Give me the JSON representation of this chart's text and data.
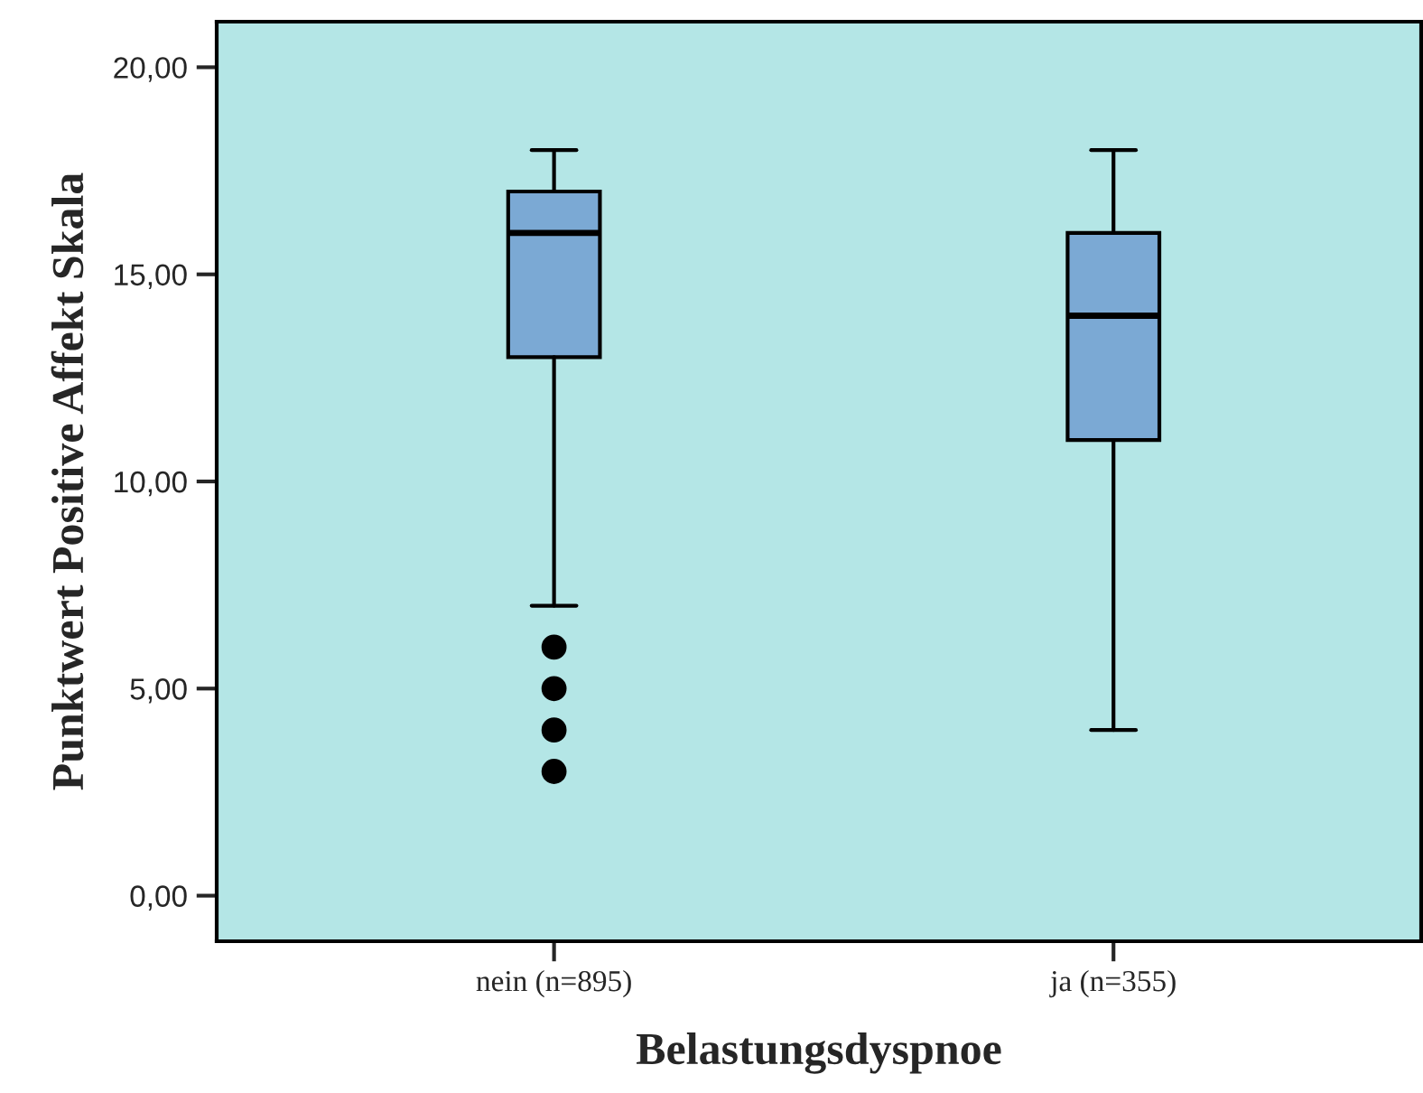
{
  "chart_data": {
    "type": "box",
    "xlabel": "Belastungsdyspnoe",
    "ylabel": "Punktwert Positive Affekt Skala",
    "categories": [
      "nein (n=895)",
      "ja (n=355)"
    ],
    "boxes": [
      {
        "low": 7,
        "q1": 13,
        "median": 16,
        "q3": 17,
        "high": 18,
        "outliers": [
          3,
          4,
          5,
          6
        ]
      },
      {
        "low": 4,
        "q1": 11,
        "median": 14,
        "q3": 16,
        "high": 18
      }
    ],
    "color": "#7ba9d4",
    "ylim": [
      -1.1,
      21.1
    ],
    "yticks": [
      {
        "value": 0,
        "label": "0,00"
      },
      {
        "value": 5,
        "label": "5,00"
      },
      {
        "value": 10,
        "label": "10,00"
      },
      {
        "value": 15,
        "label": "15,00"
      },
      {
        "value": 20,
        "label": "20,00"
      }
    ],
    "grid": false,
    "legend": false
  }
}
